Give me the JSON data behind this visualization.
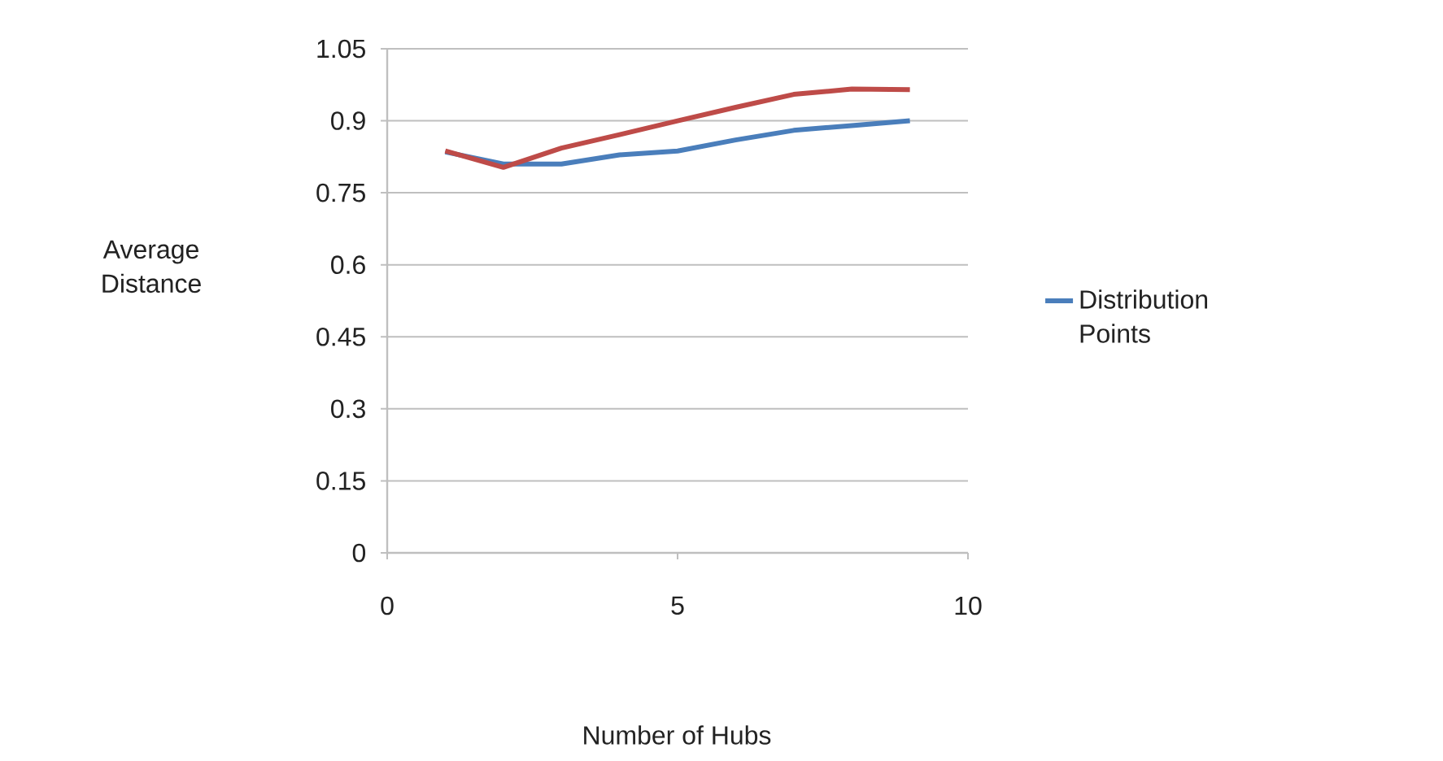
{
  "chart_data": {
    "type": "line",
    "xlabel": "Number of Hubs",
    "ylabel": "Average Distance",
    "x": [
      1,
      2,
      3,
      4,
      5,
      6,
      7,
      8,
      9
    ],
    "series": [
      {
        "name": "Distribution Points",
        "color": "#4a7ebb",
        "values": [
          0.835,
          0.81,
          0.81,
          0.829,
          0.837,
          0.86,
          0.88,
          0.89,
          0.9
        ]
      },
      {
        "color": "#be4b48",
        "values": [
          0.837,
          0.803,
          0.843,
          0.871,
          0.9,
          0.928,
          0.955,
          0.966,
          0.965
        ]
      }
    ],
    "xlim": [
      0,
      10
    ],
    "ylim": [
      0,
      1.05
    ],
    "xticks": [
      0,
      5,
      10
    ],
    "yticks": [
      0,
      0.15,
      0.3,
      0.45,
      0.6,
      0.75,
      0.9,
      1.05
    ],
    "grid": "y",
    "legend": "right",
    "marker": "none"
  }
}
